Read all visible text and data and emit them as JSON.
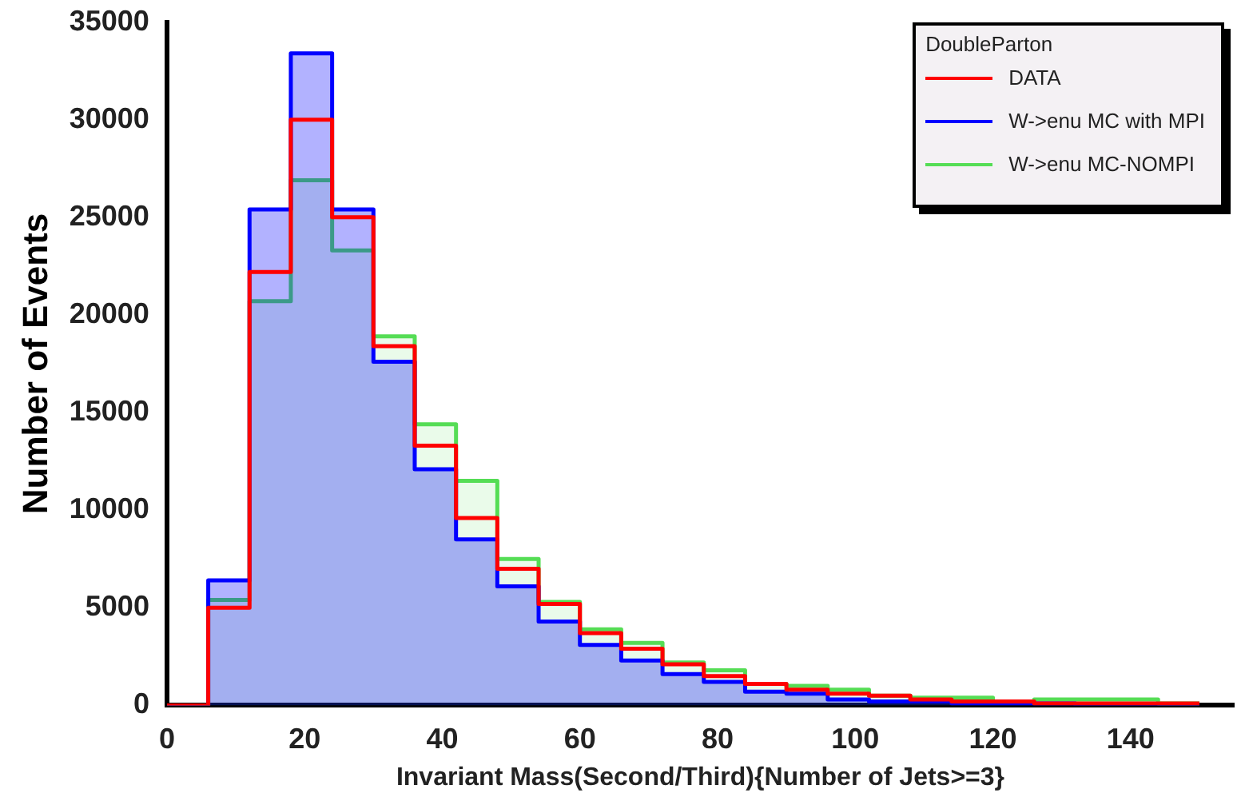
{
  "chart_data": {
    "type": "histogram",
    "xlabel": "Invariant Mass(Second/Third){Number of Jets>=3}",
    "ylabel": "Number of Events",
    "legend_title": "DoubleParton",
    "legend": "top right",
    "grid": false,
    "bins": [
      0,
      6,
      12,
      18,
      24,
      30,
      36,
      42,
      48,
      54,
      60,
      66,
      72,
      78,
      84,
      90,
      96,
      102,
      108,
      114,
      120,
      126,
      132,
      138,
      144,
      150
    ],
    "xlim": [
      0,
      155
    ],
    "xticks": [
      0,
      20,
      40,
      60,
      80,
      100,
      120,
      140
    ],
    "ylim": [
      0,
      35000
    ],
    "yticks": [
      0,
      5000,
      10000,
      15000,
      20000,
      25000,
      30000,
      35000
    ],
    "series": [
      {
        "name": "DATA",
        "color": "#ff0000",
        "values": [
          0,
          5000,
          22200,
          30000,
          25000,
          18400,
          13300,
          9600,
          7000,
          5200,
          3700,
          2900,
          2100,
          1500,
          1100,
          800,
          600,
          500,
          300,
          200,
          200,
          100,
          100,
          100,
          100
        ]
      },
      {
        "name": "W->enu MC with MPI",
        "color": "#0000ff",
        "values": [
          0,
          6400,
          25400,
          33400,
          25400,
          17600,
          12100,
          8500,
          6100,
          4300,
          3100,
          2300,
          1600,
          1200,
          700,
          600,
          300,
          200,
          200,
          100,
          100,
          100,
          0,
          0,
          0
        ]
      },
      {
        "name": "W->enu MC-NOMPI",
        "color": "#55dd55",
        "values": [
          0,
          5400,
          20700,
          26900,
          23300,
          18900,
          14400,
          11500,
          7500,
          5300,
          3900,
          3200,
          2200,
          1800,
          1100,
          1000,
          800,
          500,
          400,
          400,
          200,
          300,
          300,
          300,
          100
        ]
      }
    ]
  }
}
